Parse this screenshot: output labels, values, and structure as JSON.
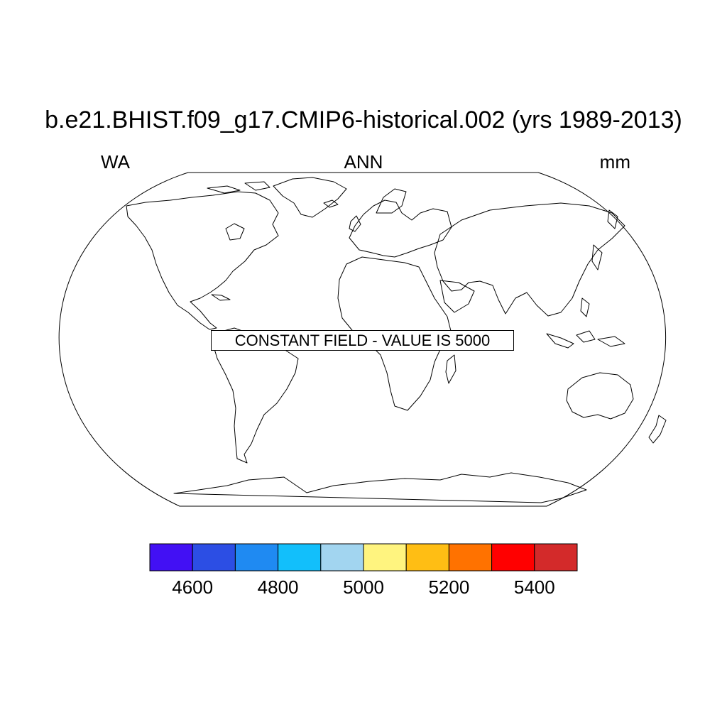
{
  "title": "b.e21.BHIST.f09_g17.CMIP6-historical.002 (yrs 1989-2013)",
  "subtitle_left": "WA",
  "subtitle_center": "ANN",
  "subtitle_right": "mm",
  "notice": "CONSTANT FIELD - VALUE IS 5000",
  "colorbar": {
    "levels": [
      4500,
      4600,
      4700,
      4800,
      4900,
      5000,
      5100,
      5200,
      5300,
      5400,
      5500
    ],
    "colors": [
      "#4210F4",
      "#2C4EE4",
      "#1F8AF2",
      "#12BFFB",
      "#A2D5F0",
      "#FFF47F",
      "#FFBE14",
      "#FF7200",
      "#FF0000",
      "#D32A2A"
    ],
    "tick_values": [
      4600,
      4800,
      5000,
      5200,
      5400
    ],
    "tick_labels": [
      "4600",
      "4800",
      "5000",
      "5200",
      "5400"
    ]
  }
}
